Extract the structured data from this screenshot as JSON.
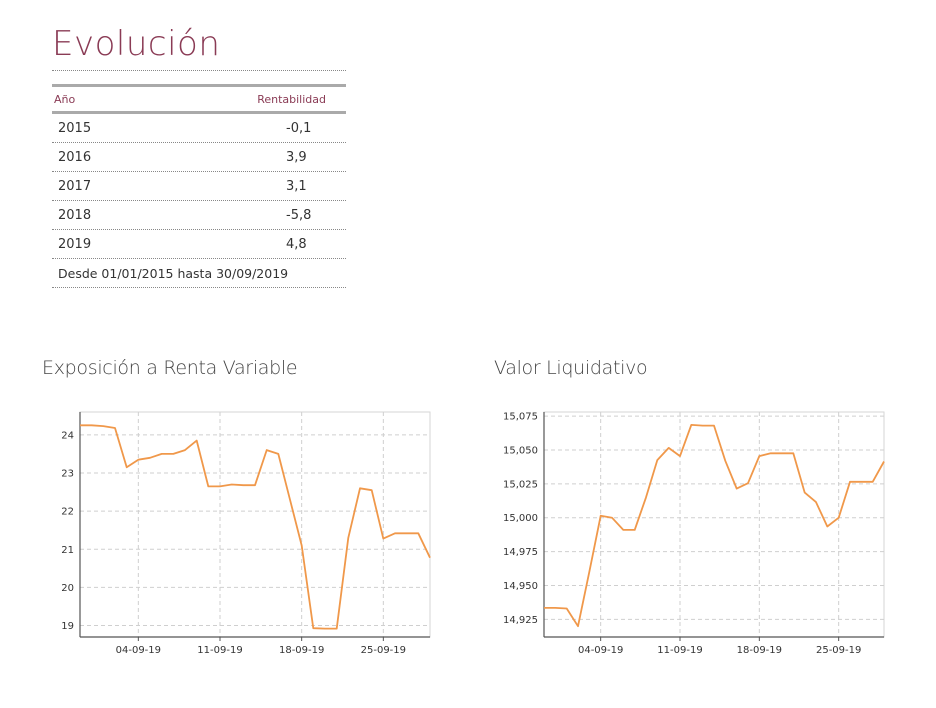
{
  "section_title": "Evolución",
  "table": {
    "headers": [
      "Año",
      "Rentabilidad"
    ],
    "rows": [
      {
        "year": "2015",
        "value": "-0,1"
      },
      {
        "year": "2016",
        "value": "3,9"
      },
      {
        "year": "2017",
        "value": "3,1"
      },
      {
        "year": "2018",
        "value": "-5,8"
      },
      {
        "year": "2019",
        "value": "4,8"
      }
    ],
    "note": "Desde 01/01/2015 hasta 30/09/2019"
  },
  "chart_data": [
    {
      "type": "line",
      "title": "Exposición a Renta Variable",
      "xlabel": "",
      "ylabel": "",
      "x": [
        "2019-08-30",
        "2019-08-31",
        "2019-09-01",
        "2019-09-02",
        "2019-09-03",
        "2019-09-04",
        "2019-09-05",
        "2019-09-06",
        "2019-09-07",
        "2019-09-08",
        "2019-09-09",
        "2019-09-10",
        "2019-09-11",
        "2019-09-12",
        "2019-09-13",
        "2019-09-14",
        "2019-09-15",
        "2019-09-16",
        "2019-09-17",
        "2019-09-18",
        "2019-09-19",
        "2019-09-20",
        "2019-09-21",
        "2019-09-22",
        "2019-09-23",
        "2019-09-24",
        "2019-09-25",
        "2019-09-26",
        "2019-09-27",
        "2019-09-28",
        "2019-09-29"
      ],
      "values": [
        24.25,
        24.25,
        24.23,
        24.18,
        23.15,
        23.35,
        23.4,
        23.5,
        23.5,
        23.6,
        23.85,
        22.65,
        22.65,
        22.7,
        22.68,
        22.68,
        23.6,
        23.5,
        22.3,
        21.1,
        18.93,
        18.92,
        18.92,
        21.3,
        22.6,
        22.55,
        21.28,
        21.42,
        21.42,
        21.42,
        20.78
      ],
      "xticks": [
        "04-09-19",
        "11-09-19",
        "18-09-19",
        "25-09-19"
      ],
      "yticks": [
        19,
        20,
        21,
        22,
        23,
        24
      ],
      "ylim": [
        18.7,
        24.6
      ],
      "grid": true,
      "color": "#f0984a"
    },
    {
      "type": "line",
      "title": "Valor Liquidativo",
      "xlabel": "",
      "ylabel": "",
      "x": [
        "2019-08-30",
        "2019-08-31",
        "2019-09-01",
        "2019-09-02",
        "2019-09-03",
        "2019-09-04",
        "2019-09-05",
        "2019-09-06",
        "2019-09-07",
        "2019-09-08",
        "2019-09-09",
        "2019-09-10",
        "2019-09-11",
        "2019-09-12",
        "2019-09-13",
        "2019-09-14",
        "2019-09-15",
        "2019-09-16",
        "2019-09-17",
        "2019-09-18",
        "2019-09-19",
        "2019-09-20",
        "2019-09-21",
        "2019-09-22",
        "2019-09-23",
        "2019-09-24",
        "2019-09-25",
        "2019-09-26",
        "2019-09-27",
        "2019-09-28",
        "2019-09-29"
      ],
      "values": [
        14.9335,
        14.9335,
        14.933,
        14.92,
        14.96,
        15.0015,
        15.0,
        14.991,
        14.991,
        15.015,
        15.0425,
        15.0515,
        15.0455,
        15.0685,
        15.068,
        15.068,
        15.042,
        15.0215,
        15.0255,
        15.0455,
        15.0475,
        15.0475,
        15.0475,
        15.0185,
        15.0115,
        14.9935,
        15.0,
        15.0265,
        15.0265,
        15.0265,
        15.0415
      ],
      "xticks": [
        "04-09-19",
        "11-09-19",
        "18-09-19",
        "25-09-19"
      ],
      "yticks": [
        "14,925",
        "14,950",
        "14,975",
        "15,000",
        "15,025",
        "15,050",
        "15,075"
      ],
      "ylim": [
        14.912,
        15.078
      ],
      "grid": true,
      "color": "#f0984a"
    }
  ]
}
